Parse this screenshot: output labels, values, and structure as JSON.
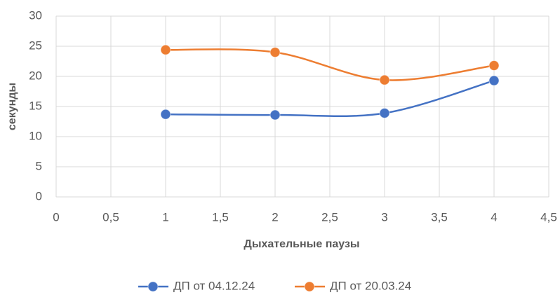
{
  "chart_data": {
    "type": "line",
    "x_label": "Дыхательные паузы",
    "y_label": "секунды",
    "x": [
      1,
      2,
      3,
      4
    ],
    "series": [
      {
        "name": "ДП от 04.12.24",
        "color": "#4472c4",
        "values": [
          13.7,
          13.6,
          13.9,
          19.3
        ]
      },
      {
        "name": "ДП от 20.03.24",
        "color": "#ed7d31",
        "values": [
          24.4,
          24.0,
          19.4,
          21.8
        ]
      }
    ],
    "xlim": [
      0,
      4.5
    ],
    "xticks": [
      0,
      {
        "value": 0.5,
        "label": "0,5"
      },
      1,
      {
        "value": 1.5,
        "label": "1,5"
      },
      2,
      {
        "value": 2.5,
        "label": "2,5"
      },
      3,
      {
        "value": 3.5,
        "label": "3,5"
      },
      4,
      {
        "value": 4.5,
        "label": "4,5"
      }
    ],
    "ylim": [
      0,
      30
    ],
    "yticks": [
      0,
      5,
      10,
      15,
      20,
      25,
      30
    ],
    "grid": true,
    "smooth": true,
    "legend": "bottom"
  }
}
